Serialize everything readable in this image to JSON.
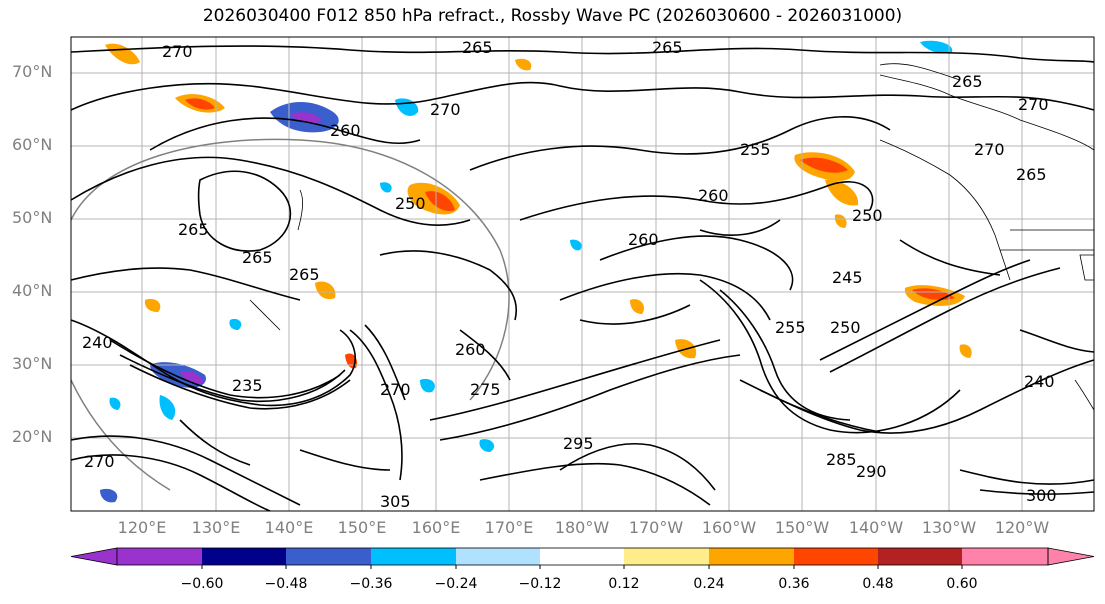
{
  "title": "2026030400 F012 850 hPa refract., Rossby Wave PC (2026030600 - 2026031000)",
  "lat_labels": [
    "70°N",
    "60°N",
    "50°N",
    "40°N",
    "30°N",
    "20°N"
  ],
  "lon_labels": [
    "120°E",
    "130°E",
    "140°E",
    "150°E",
    "160°E",
    "170°E",
    "180°W",
    "170°W",
    "160°W",
    "150°W",
    "140°W",
    "130°W",
    "120°W"
  ],
  "colorbar": {
    "colors": [
      "#9a32cd",
      "#00008b",
      "#3a5fcd",
      "#00bfff",
      "#b0e2ff",
      "#ffffff",
      "#ffec8b",
      "#ffa500",
      "#ff4500",
      "#b22222",
      "#ff82ab"
    ],
    "tick_labels": [
      "−0.60",
      "−0.48",
      "−0.36",
      "−0.24",
      "−0.12",
      "0.12",
      "0.24",
      "0.36",
      "0.48",
      "0.60"
    ]
  },
  "contour_labels": [
    {
      "text": "270"
    },
    {
      "text": "265"
    },
    {
      "text": "265"
    },
    {
      "text": "265"
    },
    {
      "text": "270"
    },
    {
      "text": "270"
    },
    {
      "text": "260"
    },
    {
      "text": "270"
    },
    {
      "text": "255"
    },
    {
      "text": "260"
    },
    {
      "text": "265"
    },
    {
      "text": "250"
    },
    {
      "text": "265"
    },
    {
      "text": "265"
    },
    {
      "text": "260"
    },
    {
      "text": "250"
    },
    {
      "text": "245"
    },
    {
      "text": "255"
    },
    {
      "text": "250"
    },
    {
      "text": "265"
    },
    {
      "text": "260"
    },
    {
      "text": "275"
    },
    {
      "text": "235"
    },
    {
      "text": "240"
    },
    {
      "text": "295"
    },
    {
      "text": "285"
    },
    {
      "text": "290"
    },
    {
      "text": "305"
    },
    {
      "text": "300"
    },
    {
      "text": "240"
    },
    {
      "text": "270"
    },
    {
      "text": "270"
    }
  ]
}
